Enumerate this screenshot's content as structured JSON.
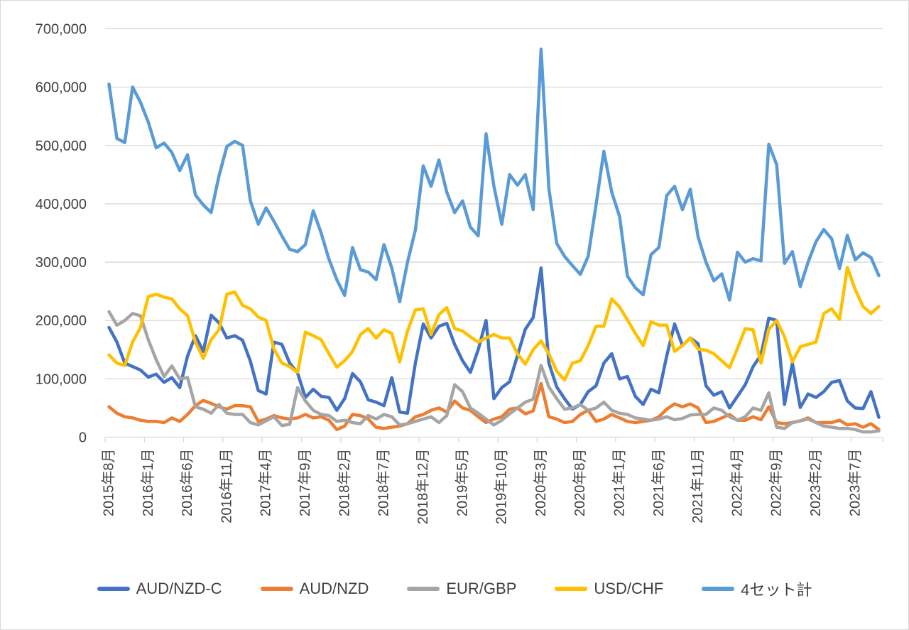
{
  "chart_data": {
    "type": "line",
    "title": "",
    "n_points": 99,
    "x_labels": [
      "2015年8月",
      "2016年1月",
      "2016年6月",
      "2016年11月",
      "2017年4月",
      "2017年9月",
      "2018年2月",
      "2018年7月",
      "2018年12月",
      "2019年5月",
      "2019年10月",
      "2020年3月",
      "2020年8月",
      "2021年1月",
      "2021年6月",
      "2021年11月",
      "2022年4月",
      "2022年9月",
      "2023年2月",
      "2023年7月"
    ],
    "label_every_n_points": 5,
    "x_frequency": "monthly",
    "ylim": [
      0,
      700000
    ],
    "y_tick_labels": [
      "0",
      "100,000",
      "200,000",
      "300,000",
      "400,000",
      "500,000",
      "600,000",
      "700,000"
    ],
    "grid": "horizontal",
    "legend_position": "bottom",
    "series": [
      {
        "name": "AUD/NZD-C",
        "id": "aud-nzd-c",
        "color": "#4472C4",
        "values": [
          188000,
          163000,
          127000,
          121000,
          115000,
          103000,
          108000,
          94000,
          102000,
          85000,
          139000,
          174000,
          147000,
          209000,
          196000,
          170000,
          174000,
          166000,
          130000,
          80000,
          74000,
          163000,
          159000,
          127000,
          110000,
          68000,
          82000,
          70000,
          68000,
          46000,
          66000,
          109000,
          95000,
          64000,
          60000,
          54000,
          102000,
          43000,
          41000,
          127000,
          194000,
          170000,
          190000,
          195000,
          159000,
          131000,
          111000,
          150000,
          200000,
          66000,
          85000,
          95000,
          140000,
          185000,
          205000,
          290000,
          127000,
          86000,
          66000,
          48000,
          56000,
          78000,
          88000,
          127000,
          143000,
          100000,
          104000,
          70000,
          56000,
          82000,
          76000,
          139000,
          194000,
          157000,
          170000,
          160000,
          88000,
          72000,
          78000,
          50000,
          70000,
          90000,
          121000,
          141000,
          204000,
          200000,
          56000,
          127000,
          51000,
          74000,
          68000,
          78000,
          94000,
          97000,
          62000,
          50000,
          49000,
          78000,
          34000
        ]
      },
      {
        "name": "AUD/NZD",
        "id": "aud-nzd",
        "color": "#ED7D31",
        "values": [
          52000,
          41000,
          35000,
          33000,
          29000,
          27000,
          27000,
          25000,
          33000,
          27000,
          39000,
          54000,
          63000,
          58000,
          52000,
          48000,
          54000,
          54000,
          52000,
          27000,
          31000,
          37000,
          33000,
          31000,
          33000,
          39000,
          33000,
          35000,
          29000,
          13000,
          19000,
          39000,
          37000,
          31000,
          17000,
          15000,
          17000,
          19000,
          23000,
          35000,
          39000,
          46000,
          50000,
          43000,
          62000,
          50000,
          46000,
          35000,
          25000,
          31000,
          35000,
          48000,
          50000,
          40000,
          45000,
          92000,
          35000,
          31000,
          25000,
          27000,
          39000,
          46000,
          27000,
          31000,
          39000,
          33000,
          27000,
          25000,
          27000,
          29000,
          35000,
          48000,
          57000,
          52000,
          57000,
          50000,
          25000,
          27000,
          33000,
          39000,
          29000,
          29000,
          35000,
          30000,
          52000,
          25000,
          23000,
          25000,
          28000,
          33000,
          25000,
          25000,
          25000,
          29000,
          21000,
          23000,
          17000,
          23000,
          13000
        ]
      },
      {
        "name": "EUR/GBP",
        "id": "eur-gbp",
        "color": "#A5A5A5",
        "values": [
          215000,
          192000,
          200000,
          212000,
          208000,
          167000,
          133000,
          104000,
          122000,
          100000,
          102000,
          52000,
          48000,
          41000,
          56000,
          41000,
          39000,
          39000,
          25000,
          21000,
          28000,
          35000,
          20000,
          22000,
          85000,
          62000,
          46000,
          39000,
          37000,
          27000,
          29000,
          25000,
          23000,
          37000,
          31000,
          39000,
          35000,
          21000,
          23000,
          27000,
          31000,
          35000,
          25000,
          37000,
          90000,
          78000,
          50000,
          41000,
          31000,
          21000,
          29000,
          40000,
          50000,
          60000,
          65000,
          123000,
          86000,
          66000,
          48000,
          50000,
          56000,
          46000,
          50000,
          60000,
          46000,
          41000,
          39000,
          33000,
          31000,
          29000,
          31000,
          35000,
          30000,
          32000,
          38000,
          39000,
          39000,
          50000,
          46000,
          35000,
          29000,
          35000,
          50000,
          46000,
          76000,
          17000,
          15000,
          25000,
          28000,
          31000,
          25000,
          19000,
          17000,
          15000,
          15000,
          13000,
          9000,
          9000,
          11000
        ]
      },
      {
        "name": "USD/CHF",
        "id": "usd-chf",
        "color": "#FFC000",
        "values": [
          141000,
          127000,
          123000,
          163000,
          188000,
          241000,
          245000,
          240000,
          237000,
          220000,
          208000,
          163000,
          135000,
          167000,
          184000,
          245000,
          249000,
          226000,
          220000,
          206000,
          200000,
          151000,
          127000,
          121000,
          111000,
          180000,
          174000,
          167000,
          143000,
          120000,
          131000,
          147000,
          176000,
          186000,
          170000,
          184000,
          178000,
          129000,
          182000,
          218000,
          220000,
          176000,
          210000,
          222000,
          186000,
          182000,
          172000,
          163000,
          170000,
          176000,
          170000,
          170000,
          143000,
          125000,
          150000,
          165000,
          143000,
          113000,
          98000,
          127000,
          131000,
          157000,
          190000,
          190000,
          237000,
          223000,
          201000,
          178000,
          157000,
          198000,
          192000,
          192000,
          147000,
          157000,
          170000,
          151000,
          149000,
          143000,
          131000,
          119000,
          152000,
          186000,
          184000,
          127000,
          185000,
          200000,
          172000,
          129000,
          155000,
          159000,
          163000,
          212000,
          220000,
          202000,
          291000,
          253000,
          224000,
          212000,
          224000
        ]
      },
      {
        "name": "4セット計",
        "id": "four-set-total",
        "color": "#5B9BD5",
        "values": [
          605000,
          512000,
          505000,
          600000,
          574000,
          540000,
          496000,
          504000,
          488000,
          457000,
          484000,
          415000,
          398000,
          385000,
          448000,
          498000,
          507000,
          500000,
          405000,
          365000,
          393000,
          370000,
          345000,
          322000,
          318000,
          330000,
          388000,
          350000,
          305000,
          270000,
          243000,
          325000,
          287000,
          283000,
          270000,
          330000,
          290000,
          232000,
          300000,
          355000,
          465000,
          430000,
          475000,
          420000,
          385000,
          405000,
          360000,
          345000,
          520000,
          430000,
          365000,
          450000,
          432000,
          450000,
          390000,
          665000,
          426000,
          332000,
          310000,
          294000,
          279000,
          310000,
          398000,
          490000,
          420000,
          378000,
          276000,
          256000,
          244000,
          313000,
          325000,
          414000,
          430000,
          390000,
          425000,
          343000,
          300000,
          268000,
          280000,
          235000,
          317000,
          300000,
          306000,
          302000,
          502000,
          467000,
          298000,
          318000,
          258000,
          300000,
          335000,
          356000,
          340000,
          289000,
          346000,
          304000,
          316000,
          308000,
          277000
        ]
      }
    ]
  },
  "colors": {
    "grid": "#D9D9D9",
    "axis_line": "#D9D9D9",
    "axis_text": "#404040",
    "background": "#FFFFFF",
    "border": "#D9D9D9"
  }
}
